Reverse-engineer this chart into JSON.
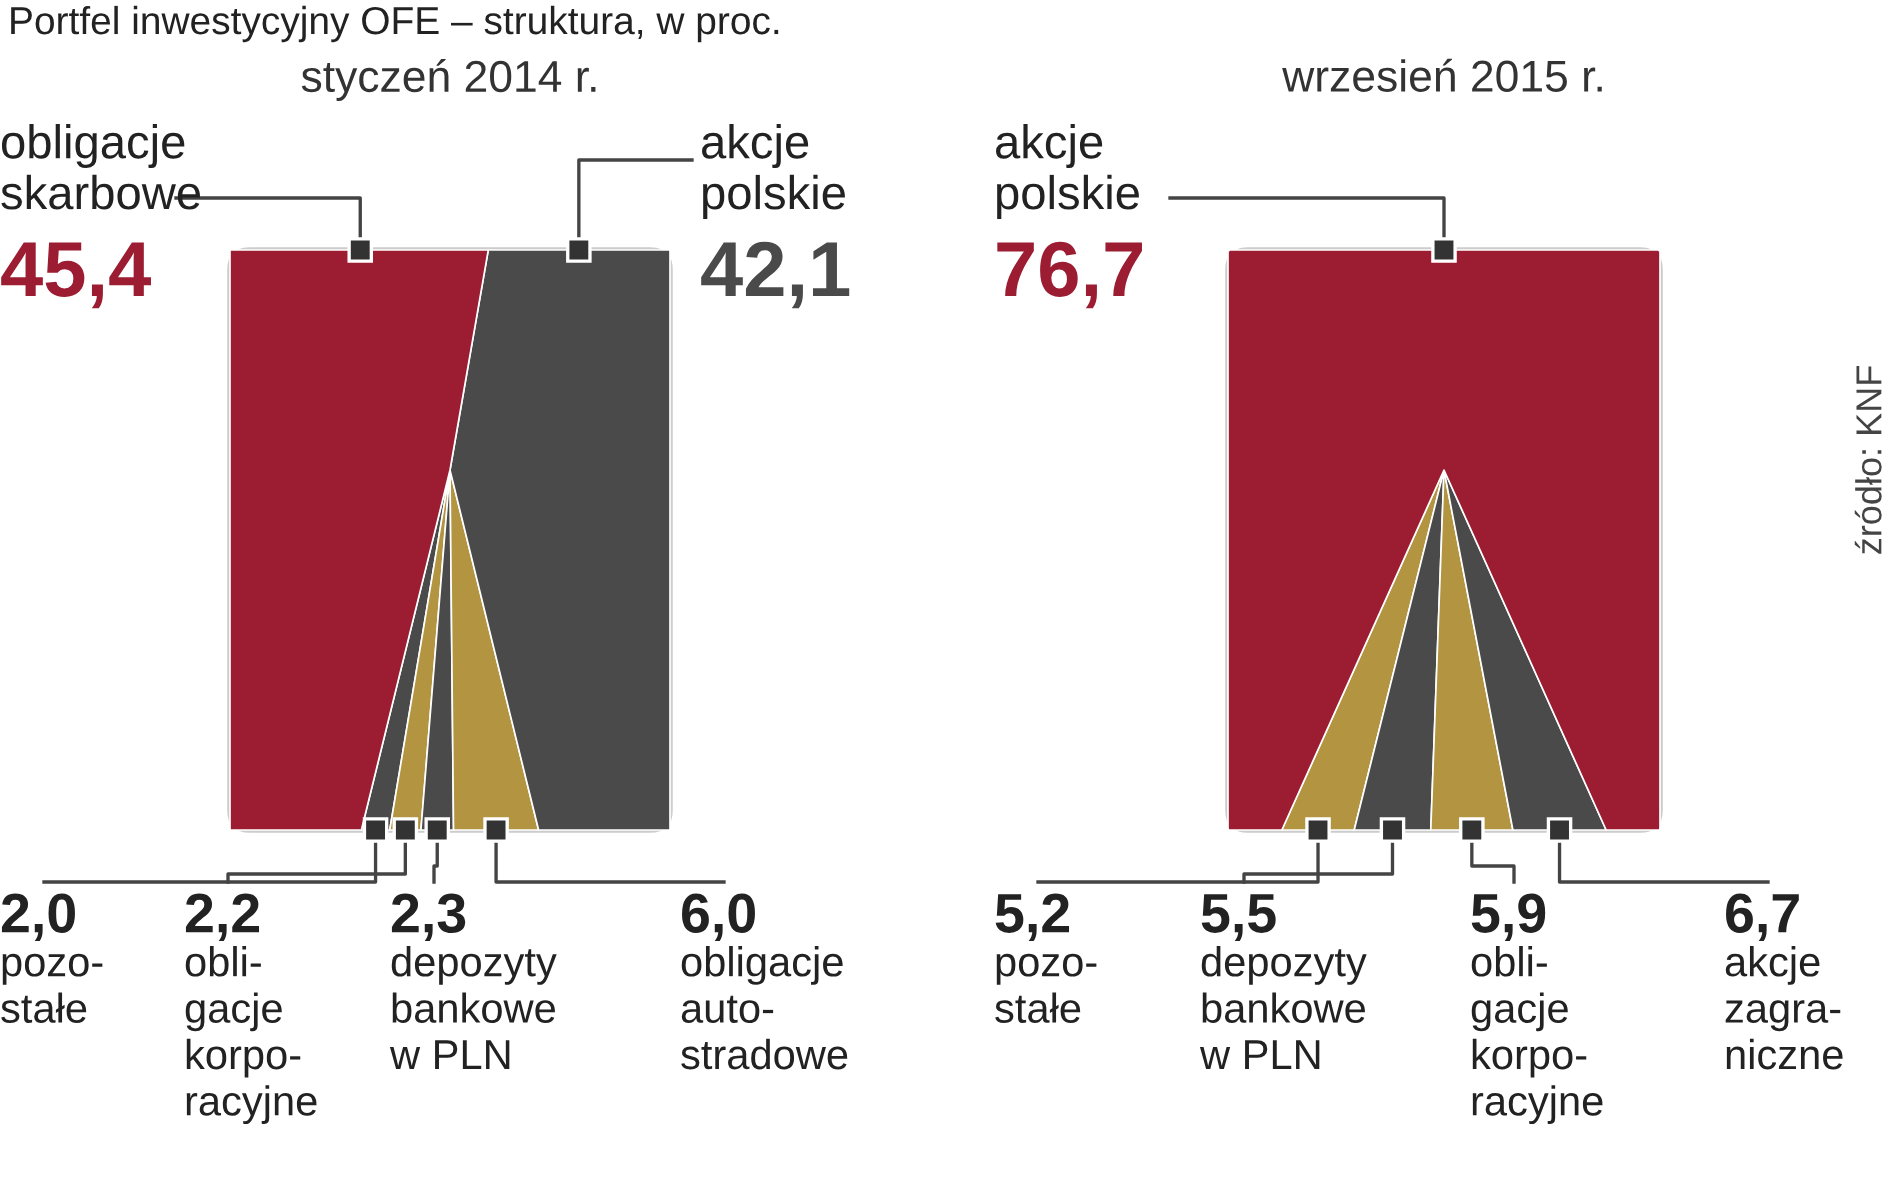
{
  "chart_data": [
    {
      "type": "other",
      "title": "styczeń 2014 r.",
      "annotations": [
        "Portfel inwestycyjny OFE – struktura, w proc."
      ],
      "categories": [
        "pozo-\nstałe",
        "obli-\ngacje\nkorpo-\nracyjne",
        "depozyty\nbankowe\nw PLN",
        "obligacje\nauto-\nstradowe",
        "akcje\npolskie",
        "obligacje\nskarbowe"
      ],
      "values": [
        2.0,
        2.2,
        2.3,
        6.0,
        42.1,
        45.4
      ],
      "value_labels": [
        "2,0",
        "2,2",
        "2,3",
        "6,0",
        "42,1",
        "45,4"
      ],
      "colors": [
        "#4a4a4a",
        "#b39440",
        "#4a4a4a",
        "#b39440",
        "#4a4a4a",
        "#9c1c32"
      ]
    },
    {
      "type": "other",
      "title": "wrzesień 2015 r.",
      "annotations": [
        "źródło: KNF"
      ],
      "categories": [
        "pozo-\nstałe",
        "depozyty\nbankowe\nw PLN",
        "obli-\ngacje\nkorpo-\nracyjne",
        "akcje\nzagra-\nniczne",
        "akcje\npolskie"
      ],
      "values": [
        5.2,
        5.5,
        5.9,
        6.7,
        76.7
      ],
      "value_labels": [
        "5,2",
        "5,5",
        "5,9",
        "6,7",
        "76,7"
      ],
      "colors": [
        "#b39440",
        "#4a4a4a",
        "#b39440",
        "#4a4a4a",
        "#9c1c32"
      ]
    }
  ]
}
